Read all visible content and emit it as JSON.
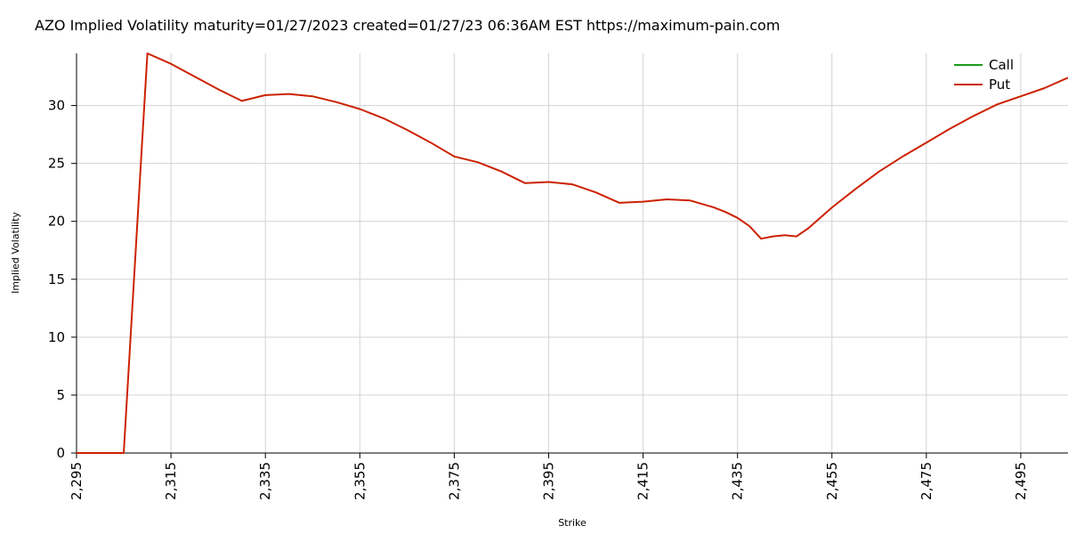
{
  "chart_data": {
    "type": "line",
    "title": "AZO Implied Volatility maturity=01/27/2023 created=01/27/23 06:36AM EST https://maximum-pain.com",
    "xlabel": "Strike",
    "ylabel": "Implied Volatility",
    "xlim": [
      2295,
      2505
    ],
    "ylim": [
      0,
      34.5
    ],
    "x_ticks": [
      2295,
      2315,
      2335,
      2355,
      2375,
      2395,
      2415,
      2435,
      2455,
      2475,
      2495
    ],
    "x_tick_labels": [
      "2,295",
      "2,315",
      "2,335",
      "2,355",
      "2,375",
      "2,395",
      "2,415",
      "2,435",
      "2,455",
      "2,475",
      "2,495"
    ],
    "y_ticks": [
      0,
      5,
      10,
      15,
      20,
      25,
      30
    ],
    "y_tick_labels": [
      "0",
      "5",
      "10",
      "15",
      "20",
      "25",
      "30"
    ],
    "grid": true,
    "legend": {
      "position": "top-right",
      "entries": [
        "Call",
        "Put"
      ]
    },
    "series": [
      {
        "name": "Call",
        "color": "#1a9a1a",
        "points": []
      },
      {
        "name": "Put",
        "color": "#cc2200",
        "points": [
          [
            2295,
            0
          ],
          [
            2305,
            0
          ],
          [
            2310,
            34.5
          ],
          [
            2315,
            33.6
          ],
          [
            2320,
            32.5
          ],
          [
            2325,
            31.4
          ],
          [
            2330,
            30.4
          ],
          [
            2335,
            30.9
          ],
          [
            2340,
            31.0
          ],
          [
            2345,
            30.8
          ],
          [
            2350,
            30.3
          ],
          [
            2355,
            29.7
          ],
          [
            2360,
            28.9
          ],
          [
            2365,
            27.9
          ],
          [
            2370,
            26.8
          ],
          [
            2375,
            25.6
          ],
          [
            2380,
            25.1
          ],
          [
            2385,
            24.3
          ],
          [
            2390,
            23.3
          ],
          [
            2395,
            23.4
          ],
          [
            2400,
            23.2
          ],
          [
            2405,
            22.5
          ],
          [
            2410,
            21.6
          ],
          [
            2415,
            21.7
          ],
          [
            2420,
            21.9
          ],
          [
            2425,
            21.8
          ],
          [
            2430,
            21.2
          ],
          [
            2432.5,
            20.8
          ],
          [
            2435,
            20.3
          ],
          [
            2437.5,
            19.6
          ],
          [
            2440,
            18.5
          ],
          [
            2442.5,
            18.7
          ],
          [
            2445,
            18.8
          ],
          [
            2447.5,
            18.7
          ],
          [
            2450,
            19.4
          ],
          [
            2455,
            21.2
          ],
          [
            2460,
            22.8
          ],
          [
            2465,
            24.3
          ],
          [
            2470,
            25.6
          ],
          [
            2475,
            26.8
          ],
          [
            2480,
            28.0
          ],
          [
            2485,
            29.1
          ],
          [
            2490,
            30.1
          ],
          [
            2495,
            30.8
          ],
          [
            2500,
            31.5
          ],
          [
            2505,
            32.4
          ]
        ]
      }
    ]
  }
}
